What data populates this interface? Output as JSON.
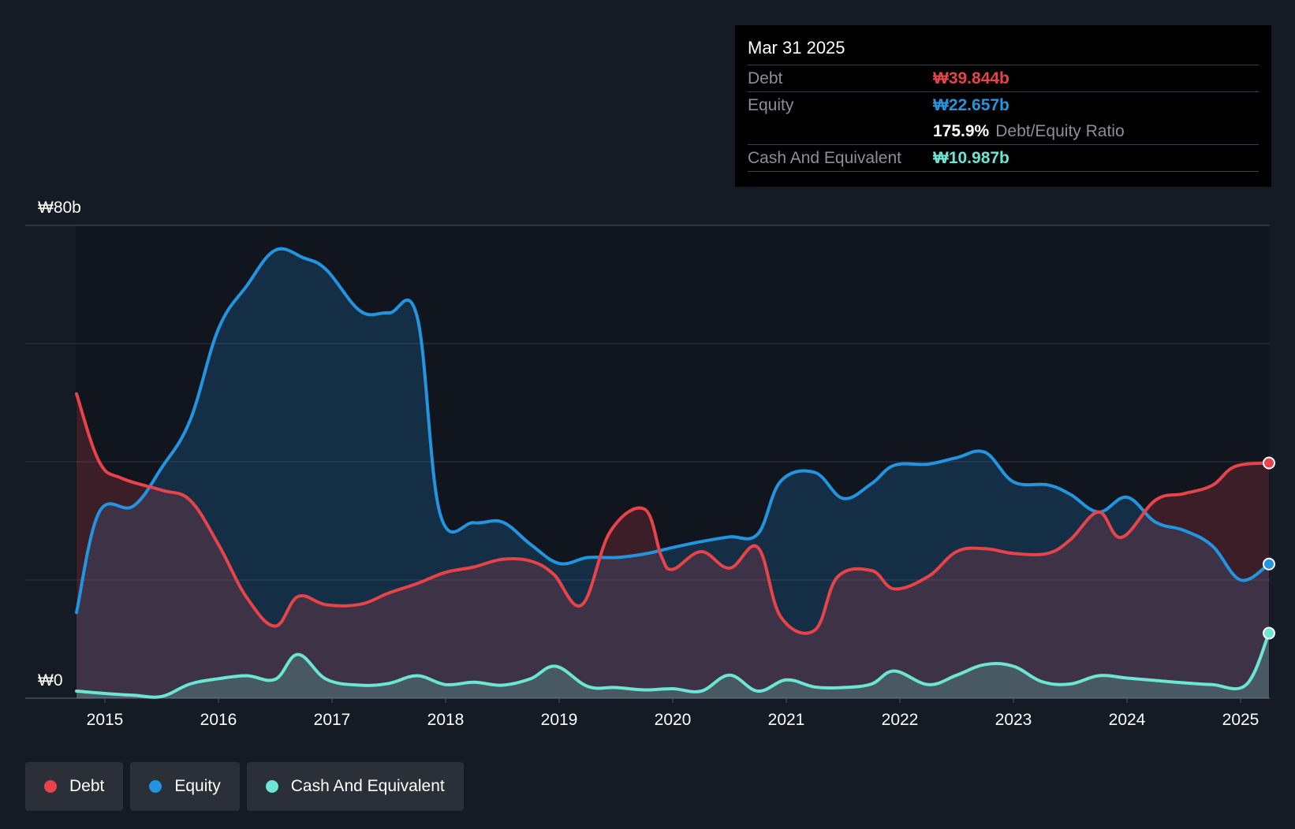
{
  "tooltip": {
    "date": "Mar 31 2025",
    "debt_label": "Debt",
    "debt_value": "₩39.844b",
    "equity_label": "Equity",
    "equity_value": "₩22.657b",
    "ratio_value": "175.9%",
    "ratio_label": "Debt/Equity Ratio",
    "cash_label": "Cash And Equivalent",
    "cash_value": "₩10.987b"
  },
  "legend": [
    {
      "label": "Debt",
      "color": "#e8424a"
    },
    {
      "label": "Equity",
      "color": "#2394df"
    },
    {
      "label": "Cash And Equivalent",
      "color": "#6ce5d2"
    }
  ],
  "chart_data": {
    "type": "area",
    "title": "",
    "xlabel": "",
    "ylabel": "",
    "y_top_label": "₩80b",
    "y_bottom_label": "₩0",
    "ylim": [
      0,
      80
    ],
    "xlim": [
      2014.73,
      2025.25
    ],
    "x_ticks": [
      2015,
      2016,
      2017,
      2018,
      2019,
      2020,
      2021,
      2022,
      2023,
      2024,
      2025
    ],
    "x_tick_labels": [
      "2015",
      "2016",
      "2017",
      "2018",
      "2019",
      "2020",
      "2021",
      "2022",
      "2023",
      "2024",
      "2025"
    ],
    "series": [
      {
        "name": "Debt",
        "color": "#e8424a",
        "points": [
          [
            2014.75,
            51.5
          ],
          [
            2014.95,
            40
          ],
          [
            2015.15,
            37.2
          ],
          [
            2015.5,
            35.2
          ],
          [
            2015.75,
            33.5
          ],
          [
            2016.0,
            26
          ],
          [
            2016.25,
            17
          ],
          [
            2016.5,
            12.2
          ],
          [
            2016.7,
            17.2
          ],
          [
            2016.95,
            15.8
          ],
          [
            2017.25,
            15.9
          ],
          [
            2017.5,
            17.8
          ],
          [
            2017.75,
            19.4
          ],
          [
            2018.0,
            21.3
          ],
          [
            2018.25,
            22.2
          ],
          [
            2018.5,
            23.5
          ],
          [
            2018.75,
            23.2
          ],
          [
            2018.95,
            21
          ],
          [
            2019.2,
            15.8
          ],
          [
            2019.45,
            28.2
          ],
          [
            2019.75,
            32
          ],
          [
            2019.9,
            24
          ],
          [
            2020.0,
            21.8
          ],
          [
            2020.25,
            24.8
          ],
          [
            2020.5,
            22
          ],
          [
            2020.75,
            25.5
          ],
          [
            2020.95,
            13.8
          ],
          [
            2021.25,
            11.5
          ],
          [
            2021.45,
            20.5
          ],
          [
            2021.75,
            21.6
          ],
          [
            2021.95,
            18.5
          ],
          [
            2022.25,
            20.6
          ],
          [
            2022.5,
            24.8
          ],
          [
            2022.75,
            25.3
          ],
          [
            2023.0,
            24.5
          ],
          [
            2023.3,
            24.5
          ],
          [
            2023.5,
            26.8
          ],
          [
            2023.75,
            31.5
          ],
          [
            2023.95,
            27.2
          ],
          [
            2024.25,
            33.5
          ],
          [
            2024.5,
            34.6
          ],
          [
            2024.75,
            36
          ],
          [
            2024.95,
            39.2
          ],
          [
            2025.25,
            39.8
          ]
        ]
      },
      {
        "name": "Equity",
        "color": "#2394df",
        "points": [
          [
            2014.75,
            14.5
          ],
          [
            2014.95,
            31.5
          ],
          [
            2015.25,
            32.5
          ],
          [
            2015.5,
            39
          ],
          [
            2015.75,
            47
          ],
          [
            2016.0,
            62.5
          ],
          [
            2016.25,
            69.8
          ],
          [
            2016.5,
            75.8
          ],
          [
            2016.75,
            74.5
          ],
          [
            2016.95,
            72.5
          ],
          [
            2017.25,
            65.5
          ],
          [
            2017.5,
            65.2
          ],
          [
            2017.75,
            64.5
          ],
          [
            2017.95,
            31.3
          ],
          [
            2018.25,
            29.7
          ],
          [
            2018.5,
            29.8
          ],
          [
            2018.75,
            26
          ],
          [
            2019.0,
            22.8
          ],
          [
            2019.25,
            23.8
          ],
          [
            2019.5,
            23.8
          ],
          [
            2019.75,
            24.4
          ],
          [
            2020.0,
            25.5
          ],
          [
            2020.25,
            26.5
          ],
          [
            2020.5,
            27.3
          ],
          [
            2020.75,
            27.8
          ],
          [
            2020.95,
            36.7
          ],
          [
            2021.25,
            38.2
          ],
          [
            2021.5,
            33.8
          ],
          [
            2021.75,
            36.3
          ],
          [
            2021.95,
            39.4
          ],
          [
            2022.25,
            39.6
          ],
          [
            2022.5,
            40.7
          ],
          [
            2022.75,
            41.6
          ],
          [
            2023.0,
            36.6
          ],
          [
            2023.3,
            36.1
          ],
          [
            2023.5,
            34.5
          ],
          [
            2023.75,
            31.5
          ],
          [
            2024.0,
            34
          ],
          [
            2024.25,
            29.8
          ],
          [
            2024.5,
            28.4
          ],
          [
            2024.75,
            25.8
          ],
          [
            2025.0,
            20
          ],
          [
            2025.25,
            22.7
          ]
        ]
      },
      {
        "name": "Cash And Equivalent",
        "color": "#6ce5d2",
        "points": [
          [
            2014.75,
            1.2
          ],
          [
            2015.0,
            0.8
          ],
          [
            2015.25,
            0.5
          ],
          [
            2015.5,
            0.3
          ],
          [
            2015.75,
            2.4
          ],
          [
            2016.0,
            3.3
          ],
          [
            2016.25,
            3.8
          ],
          [
            2016.5,
            3.2
          ],
          [
            2016.7,
            7.4
          ],
          [
            2016.95,
            3.2
          ],
          [
            2017.25,
            2.2
          ],
          [
            2017.5,
            2.5
          ],
          [
            2017.75,
            3.8
          ],
          [
            2018.0,
            2.3
          ],
          [
            2018.25,
            2.7
          ],
          [
            2018.5,
            2.2
          ],
          [
            2018.75,
            3.3
          ],
          [
            2018.97,
            5.4
          ],
          [
            2019.25,
            2.0
          ],
          [
            2019.5,
            1.8
          ],
          [
            2019.75,
            1.4
          ],
          [
            2020.0,
            1.6
          ],
          [
            2020.25,
            1.2
          ],
          [
            2020.5,
            3.9
          ],
          [
            2020.75,
            1.2
          ],
          [
            2021.0,
            3.1
          ],
          [
            2021.25,
            1.9
          ],
          [
            2021.5,
            1.8
          ],
          [
            2021.75,
            2.4
          ],
          [
            2021.95,
            4.6
          ],
          [
            2022.25,
            2.3
          ],
          [
            2022.5,
            3.9
          ],
          [
            2022.75,
            5.7
          ],
          [
            2023.0,
            5.4
          ],
          [
            2023.25,
            2.8
          ],
          [
            2023.5,
            2.4
          ],
          [
            2023.75,
            3.8
          ],
          [
            2024.0,
            3.4
          ],
          [
            2024.25,
            3.0
          ],
          [
            2024.5,
            2.6
          ],
          [
            2024.75,
            2.3
          ],
          [
            2025.05,
            2.3
          ],
          [
            2025.25,
            11.0
          ]
        ]
      }
    ]
  }
}
